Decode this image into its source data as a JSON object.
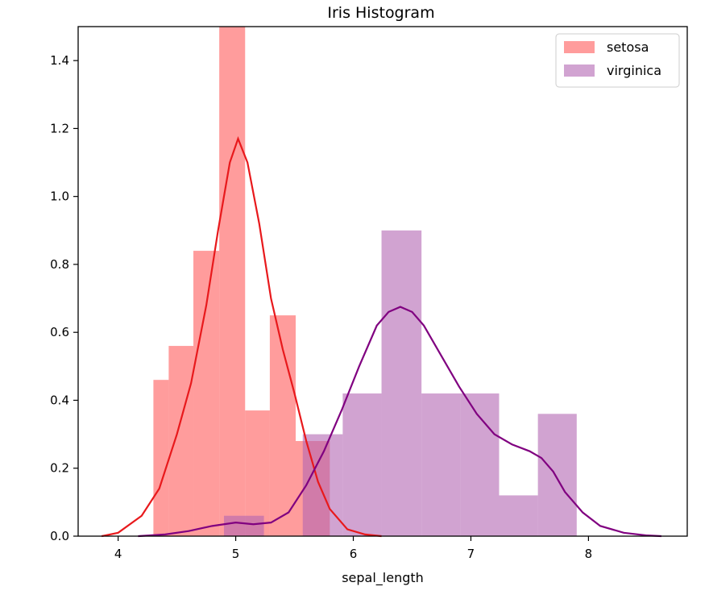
{
  "chart_data": {
    "type": "bar",
    "title": "Iris Histogram",
    "xlabel": "sepal_length",
    "ylabel": "",
    "xlim": [
      3.66,
      8.84
    ],
    "ylim": [
      0,
      1.5
    ],
    "xticks": [
      4,
      5,
      6,
      7,
      8
    ],
    "yticks": [
      0.0,
      0.2,
      0.4,
      0.6,
      0.8,
      1.0,
      1.2,
      1.4
    ],
    "ytick_labels": [
      "0.0",
      "0.2",
      "0.4",
      "0.6",
      "0.8",
      "1.0",
      "1.2",
      "1.4"
    ],
    "grid": false,
    "legend_position": "top-right",
    "series": [
      {
        "name": "setosa",
        "color": "#ff5a5a",
        "line_color": "#e8191c",
        "bins": [
          {
            "x0": 4.3,
            "x1": 4.43,
            "value": 0.46
          },
          {
            "x0": 4.43,
            "x1": 4.64,
            "value": 0.56
          },
          {
            "x0": 4.64,
            "x1": 4.86,
            "value": 0.84
          },
          {
            "x0": 4.86,
            "x1": 5.08,
            "value": 1.5
          },
          {
            "x0": 5.08,
            "x1": 5.29,
            "value": 0.37
          },
          {
            "x0": 5.29,
            "x1": 5.51,
            "value": 0.65
          },
          {
            "x0": 5.51,
            "x1": 5.8,
            "value": 0.28
          }
        ],
        "kde": [
          [
            3.86,
            0.0
          ],
          [
            4.0,
            0.01
          ],
          [
            4.2,
            0.06
          ],
          [
            4.35,
            0.14
          ],
          [
            4.5,
            0.3
          ],
          [
            4.62,
            0.45
          ],
          [
            4.75,
            0.68
          ],
          [
            4.85,
            0.9
          ],
          [
            4.95,
            1.1
          ],
          [
            5.02,
            1.17
          ],
          [
            5.1,
            1.1
          ],
          [
            5.2,
            0.92
          ],
          [
            5.3,
            0.7
          ],
          [
            5.4,
            0.55
          ],
          [
            5.5,
            0.42
          ],
          [
            5.6,
            0.28
          ],
          [
            5.7,
            0.16
          ],
          [
            5.8,
            0.08
          ],
          [
            5.95,
            0.02
          ],
          [
            6.1,
            0.005
          ],
          [
            6.24,
            0.0
          ]
        ]
      },
      {
        "name": "virginica",
        "color": "#b266b2",
        "line_color": "#800080",
        "bins": [
          {
            "x0": 4.9,
            "x1": 5.24,
            "value": 0.06
          },
          {
            "x0": 5.57,
            "x1": 5.91,
            "value": 0.3
          },
          {
            "x0": 5.91,
            "x1": 6.24,
            "value": 0.42
          },
          {
            "x0": 6.24,
            "x1": 6.58,
            "value": 0.9
          },
          {
            "x0": 6.58,
            "x1": 6.91,
            "value": 0.42
          },
          {
            "x0": 6.91,
            "x1": 7.24,
            "value": 0.42
          },
          {
            "x0": 7.24,
            "x1": 7.57,
            "value": 0.12
          },
          {
            "x0": 7.57,
            "x1": 7.9,
            "value": 0.36
          }
        ],
        "kde": [
          [
            4.17,
            0.0
          ],
          [
            4.4,
            0.005
          ],
          [
            4.6,
            0.015
          ],
          [
            4.8,
            0.03
          ],
          [
            5.0,
            0.04
          ],
          [
            5.15,
            0.035
          ],
          [
            5.3,
            0.04
          ],
          [
            5.45,
            0.07
          ],
          [
            5.6,
            0.15
          ],
          [
            5.75,
            0.25
          ],
          [
            5.9,
            0.37
          ],
          [
            6.05,
            0.5
          ],
          [
            6.2,
            0.62
          ],
          [
            6.3,
            0.66
          ],
          [
            6.4,
            0.675
          ],
          [
            6.5,
            0.66
          ],
          [
            6.6,
            0.62
          ],
          [
            6.75,
            0.53
          ],
          [
            6.9,
            0.44
          ],
          [
            7.05,
            0.36
          ],
          [
            7.2,
            0.3
          ],
          [
            7.35,
            0.27
          ],
          [
            7.5,
            0.25
          ],
          [
            7.6,
            0.23
          ],
          [
            7.7,
            0.19
          ],
          [
            7.8,
            0.13
          ],
          [
            7.95,
            0.07
          ],
          [
            8.1,
            0.03
          ],
          [
            8.3,
            0.01
          ],
          [
            8.5,
            0.002
          ],
          [
            8.62,
            0.0
          ]
        ]
      }
    ]
  }
}
